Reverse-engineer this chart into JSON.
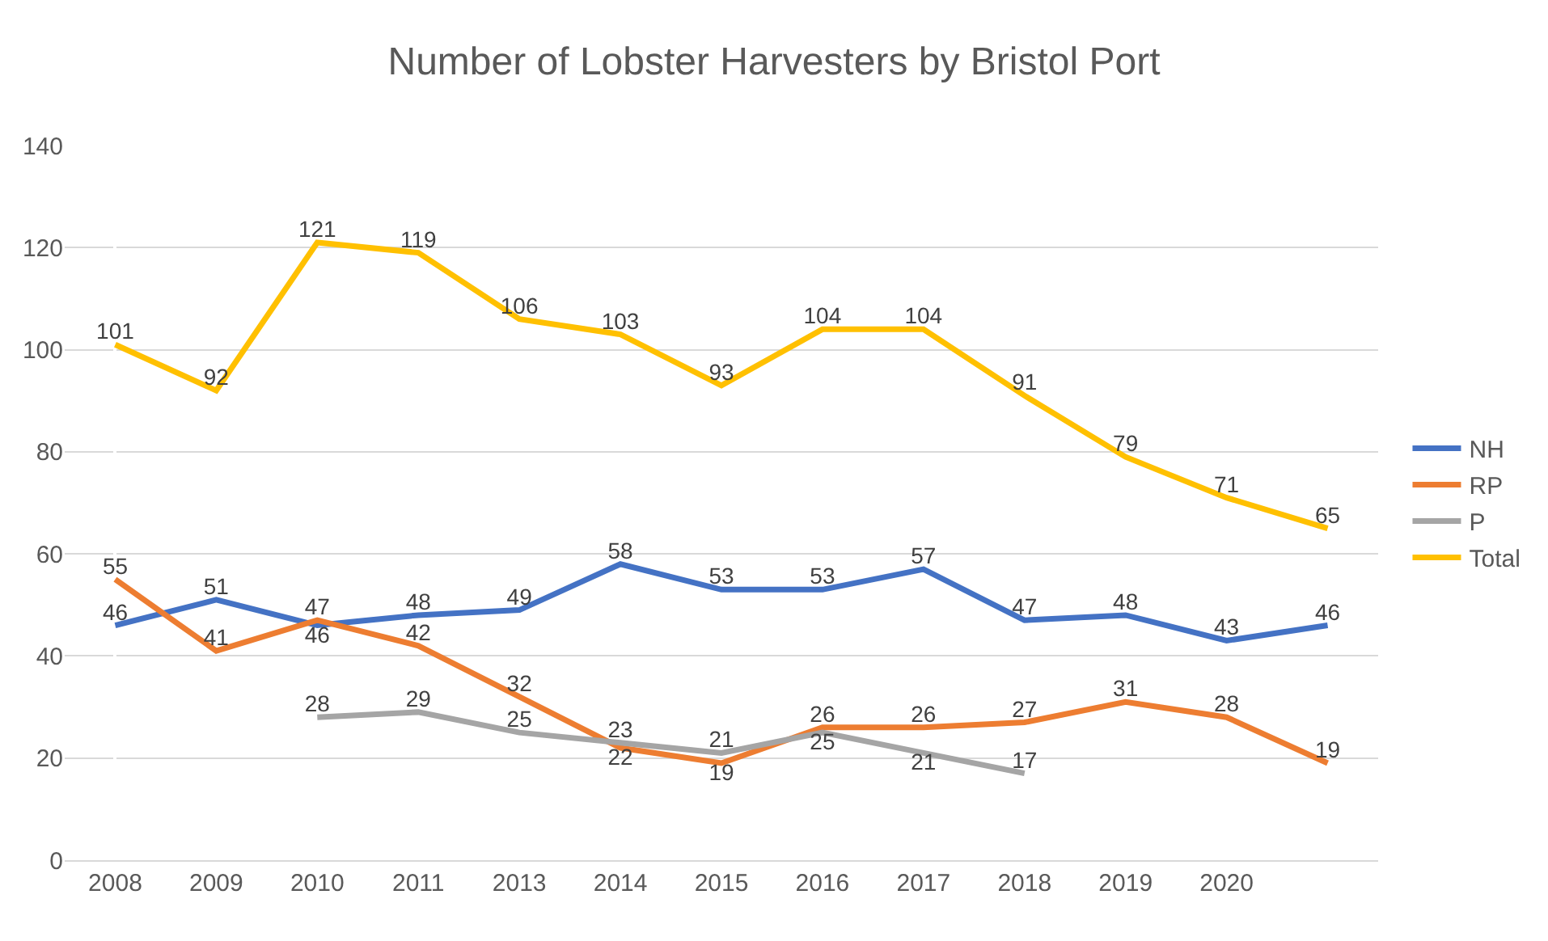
{
  "chart_data": {
    "type": "line",
    "title": "Number of Lobster Harvesters by Bristol Port",
    "categories": [
      "2008",
      "2009",
      "2010",
      "2011",
      "2013",
      "2014",
      "2015",
      "2016",
      "2017",
      "2018",
      "2019",
      "2020",
      null
    ],
    "series": [
      {
        "name": "NH",
        "color": "#4472c4",
        "values": [
          46,
          51,
          46,
          48,
          49,
          58,
          53,
          53,
          57,
          47,
          48,
          43,
          46
        ]
      },
      {
        "name": "RP",
        "color": "#ed7d31",
        "values": [
          55,
          41,
          47,
          42,
          32,
          22,
          19,
          26,
          26,
          27,
          31,
          28,
          19
        ]
      },
      {
        "name": "P",
        "color": "#a5a5a5",
        "values": [
          null,
          null,
          28,
          29,
          25,
          23,
          21,
          25,
          21,
          17,
          null,
          null,
          null
        ]
      },
      {
        "name": "Total",
        "color": "#ffc000",
        "values": [
          101,
          92,
          121,
          119,
          106,
          103,
          93,
          104,
          104,
          91,
          79,
          71,
          65
        ]
      }
    ],
    "ylim": [
      0,
      140
    ],
    "yticks": [
      0,
      20,
      40,
      60,
      80,
      100,
      120,
      140
    ],
    "grid": "y",
    "legend": "right",
    "data_labels": true,
    "marker": "none",
    "line_style": "solid"
  }
}
